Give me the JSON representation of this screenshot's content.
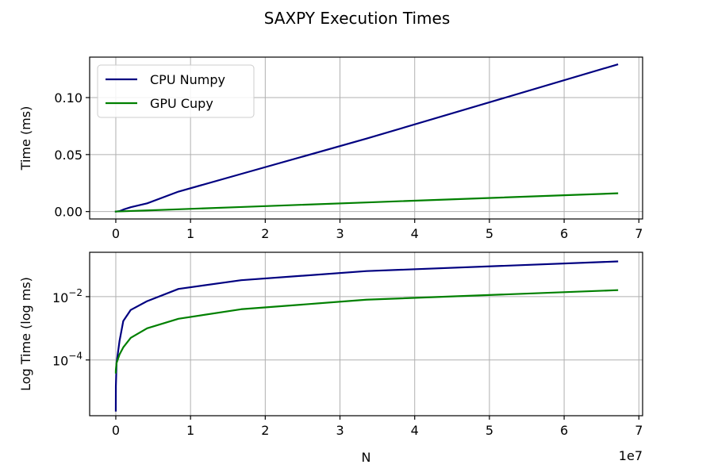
{
  "title": "SAXPY Execution Times",
  "chart_data": [
    {
      "type": "line",
      "scale": "linear",
      "ylabel": "Time (ms)",
      "xlabel": "",
      "xlim": [
        -3500000,
        70500000
      ],
      "ylim": [
        -0.0065,
        0.1355
      ],
      "xticks": [
        0,
        10000000,
        20000000,
        30000000,
        40000000,
        50000000,
        60000000,
        70000000
      ],
      "xtick_labels": [
        "0",
        "1",
        "2",
        "3",
        "4",
        "5",
        "6",
        "7"
      ],
      "yticks": [
        0,
        0.05,
        0.1
      ],
      "ytick_labels": [
        "0.00",
        "0.05",
        "0.10"
      ],
      "grid": true,
      "legend": "upper-left",
      "series": [
        {
          "name": "CPU Numpy",
          "color": "#000080",
          "x": [
            1,
            1000,
            10000,
            100000,
            500000,
            1000000,
            2000000,
            4194304,
            8388608,
            16777216,
            33554432,
            67108864
          ],
          "y": [
            2.5e-06,
            3.5e-06,
            1.5e-05,
            8e-05,
            0.0004,
            0.0017,
            0.0038,
            0.0072,
            0.0175,
            0.033,
            0.064,
            0.129
          ]
        },
        {
          "name": "GPU Cupy",
          "color": "#008000",
          "x": [
            1,
            1000,
            10000,
            100000,
            500000,
            1000000,
            2000000,
            4194304,
            8388608,
            16777216,
            33554432,
            67108864
          ],
          "y": [
            4e-05,
            4.5e-05,
            5e-05,
            8e-05,
            0.00015,
            0.00025,
            0.0005,
            0.001,
            0.002,
            0.004,
            0.008,
            0.016
          ]
        }
      ]
    },
    {
      "type": "line",
      "scale": "log",
      "ylabel": "Log Time (log ms)",
      "xlabel": "N",
      "x_offset_label": "1e7",
      "xlim": [
        -3500000,
        70500000
      ],
      "ylim_log10": [
        -5.76,
        -0.6
      ],
      "xticks": [
        0,
        10000000,
        20000000,
        30000000,
        40000000,
        50000000,
        60000000,
        70000000
      ],
      "xtick_labels": [
        "0",
        "1",
        "2",
        "3",
        "4",
        "5",
        "6",
        "7"
      ],
      "yticks": [
        0.0001,
        0.01
      ],
      "ytick_labels": [
        {
          "base": "10",
          "exp": "−4"
        },
        {
          "base": "10",
          "exp": "−2"
        }
      ],
      "grid": true,
      "series": [
        {
          "name": "CPU Numpy",
          "color": "#000080",
          "x": [
            1,
            1000,
            10000,
            100000,
            500000,
            1000000,
            2000000,
            4194304,
            8388608,
            16777216,
            33554432,
            67108864
          ],
          "y": [
            2.5e-06,
            3.5e-06,
            1.5e-05,
            8e-05,
            0.0004,
            0.0017,
            0.0038,
            0.0072,
            0.0175,
            0.033,
            0.064,
            0.129
          ]
        },
        {
          "name": "GPU Cupy",
          "color": "#008000",
          "x": [
            1,
            1000,
            10000,
            100000,
            500000,
            1000000,
            2000000,
            4194304,
            8388608,
            16777216,
            33554432,
            67108864
          ],
          "y": [
            4e-05,
            4.5e-05,
            5e-05,
            8e-05,
            0.00015,
            0.00025,
            0.0005,
            0.001,
            0.002,
            0.004,
            0.008,
            0.016
          ]
        }
      ]
    }
  ]
}
